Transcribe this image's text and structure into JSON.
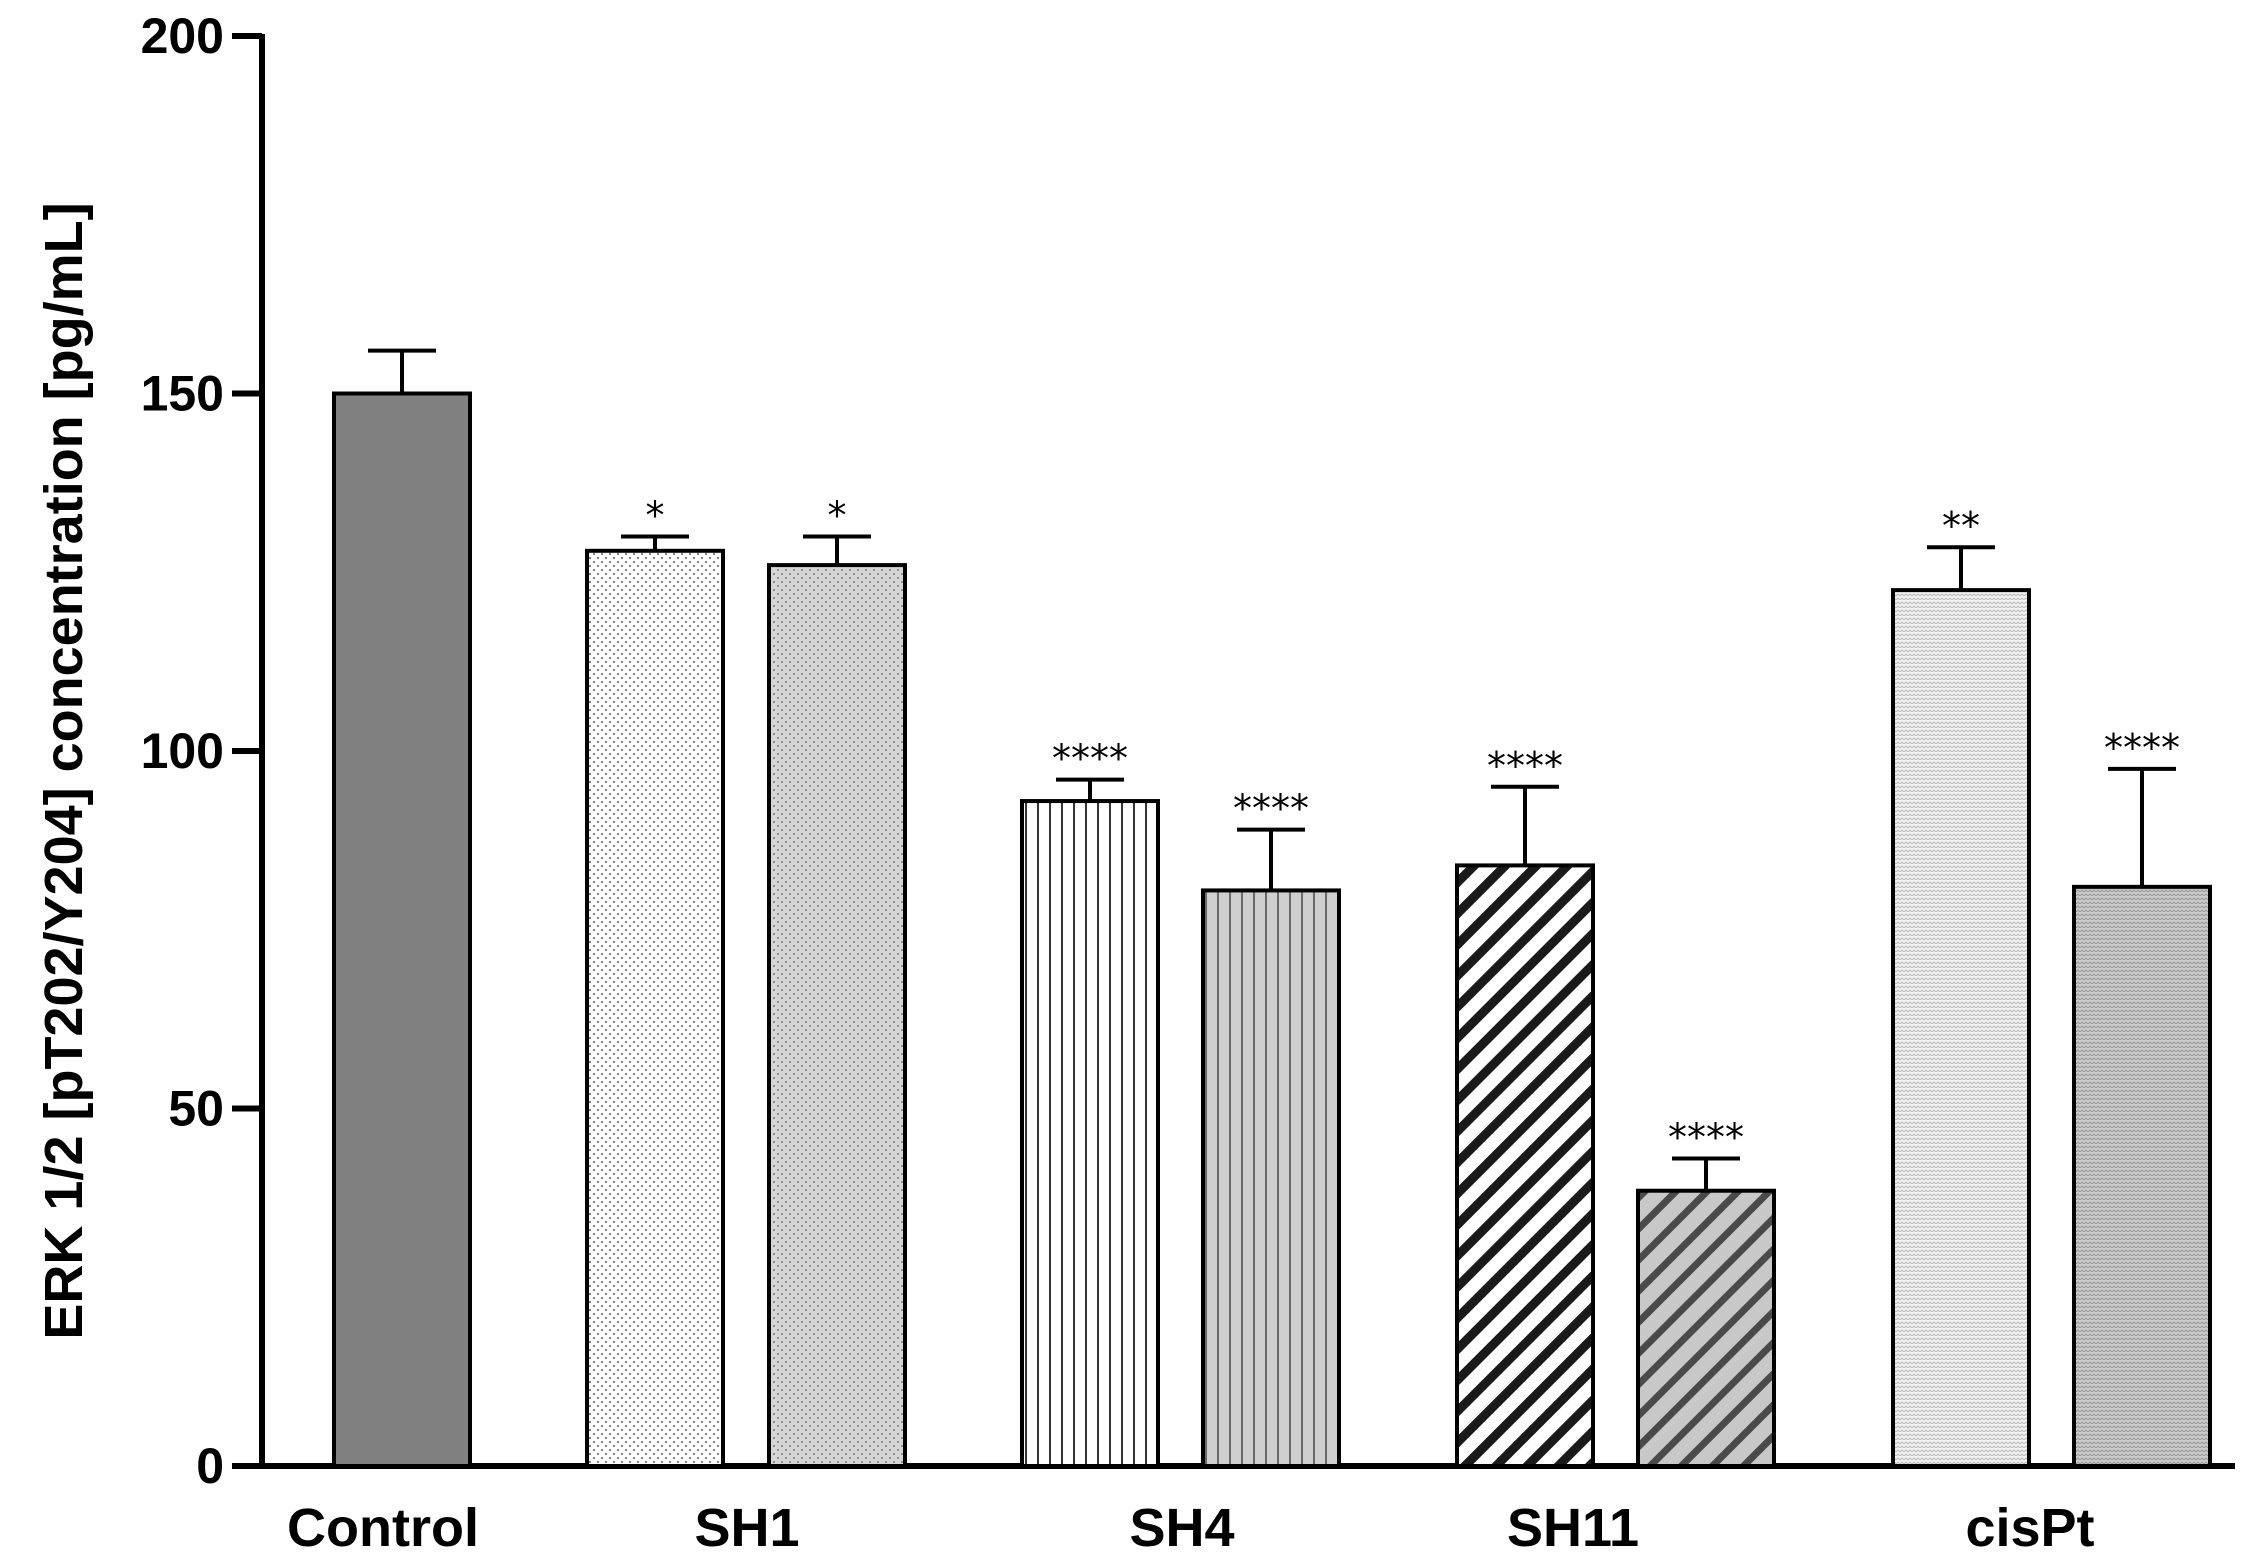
{
  "chart_data": {
    "type": "bar",
    "title": "",
    "xlabel": "",
    "ylabel": "ERK 1/2 [pT202/Y204] concentration [pg/mL]",
    "ylim": [
      0,
      200
    ],
    "yticks": [
      0,
      50,
      100,
      150,
      200
    ],
    "grid": false,
    "categories": [
      "Control",
      "SH1",
      "SH4",
      "SH11",
      "cisPt"
    ],
    "bars": [
      {
        "category": "Control",
        "value": 150,
        "error": 6,
        "significance": "",
        "pattern": "solid-dark"
      },
      {
        "category": "SH1",
        "value": 128,
        "error": 2,
        "significance": "*",
        "pattern": "dots-white"
      },
      {
        "category": "SH1",
        "value": 126,
        "error": 4,
        "significance": "*",
        "pattern": "dots-gray"
      },
      {
        "category": "SH4",
        "value": 93,
        "error": 3,
        "significance": "****",
        "pattern": "vlines-white"
      },
      {
        "category": "SH4",
        "value": 80.5,
        "error": 8.5,
        "significance": "****",
        "pattern": "vlines-gray"
      },
      {
        "category": "SH11",
        "value": 84,
        "error": 11,
        "significance": "****",
        "pattern": "diag-white"
      },
      {
        "category": "SH11",
        "value": 38.5,
        "error": 4.5,
        "significance": "****",
        "pattern": "diag-gray"
      },
      {
        "category": "cisPt",
        "value": 122.5,
        "error": 6,
        "significance": "**",
        "pattern": "weave-white"
      },
      {
        "category": "cisPt",
        "value": 81,
        "error": 16.5,
        "significance": "****",
        "pattern": "weave-gray"
      }
    ]
  }
}
